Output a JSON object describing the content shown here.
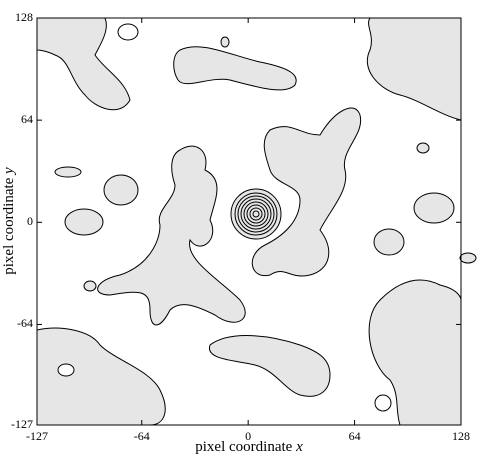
{
  "chart_data": {
    "type": "contour",
    "xlabel": "pixel coordinate ",
    "xlabel_var": "x",
    "ylabel": "pixel coordinate ",
    "ylabel_var": "y",
    "xlim": [
      -127,
      128
    ],
    "ylim": [
      -127,
      128
    ],
    "xticks": [
      -127,
      -64,
      0,
      64,
      128
    ],
    "yticks": [
      -127,
      -64,
      0,
      64,
      128
    ],
    "color": "#e6e6e6"
  }
}
